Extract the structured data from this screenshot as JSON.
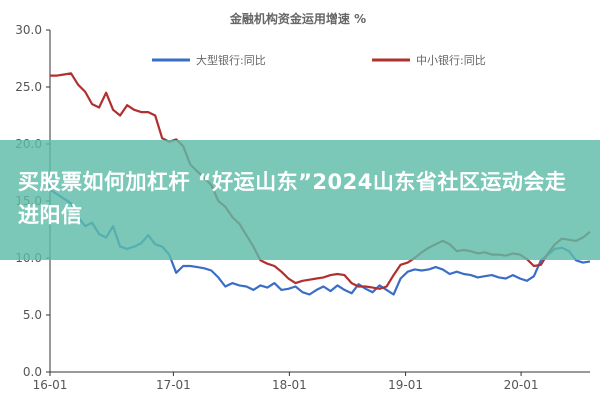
{
  "chart_data": {
    "type": "line",
    "title": "金融机构资金运用增速 %",
    "x_tick_labels": [
      "16-01",
      "17-01",
      "18-01",
      "19-01",
      "20-01"
    ],
    "y_tick_labels": [
      "0.0",
      "5.0",
      "10.0",
      "15.0",
      "20.0",
      "25.0",
      "30.0"
    ],
    "ylim": [
      0,
      30
    ],
    "grid": false,
    "legend_position": "top",
    "series": [
      {
        "name": "大型银行:同比",
        "color": "#3a6ec6",
        "values": [
          16.0,
          15.6,
          15.2,
          14.8,
          13.6,
          12.8,
          13.1,
          12.1,
          11.8,
          12.8,
          11.0,
          10.8,
          11.0,
          11.3,
          12.0,
          11.2,
          11.0,
          10.3,
          8.7,
          9.3,
          9.3,
          9.2,
          9.1,
          8.9,
          8.3,
          7.5,
          7.8,
          7.6,
          7.5,
          7.2,
          7.6,
          7.4,
          7.8,
          7.2,
          7.3,
          7.5,
          7.0,
          6.8,
          7.2,
          7.5,
          7.1,
          7.6,
          7.2,
          6.9,
          7.7,
          7.3,
          7.0,
          7.6,
          7.2,
          6.8,
          8.2,
          8.8,
          9.0,
          8.9,
          9.0,
          9.2,
          9.0,
          8.6,
          8.8,
          8.6,
          8.5,
          8.3,
          8.4,
          8.5,
          8.3,
          8.2,
          8.5,
          8.2,
          8.0,
          8.4,
          9.8,
          10.3,
          10.8,
          10.9,
          10.6,
          9.8,
          9.6,
          9.7
        ]
      },
      {
        "name": "中小银行:同比",
        "color": "#b03030",
        "values": [
          26.0,
          26.0,
          26.1,
          26.2,
          25.2,
          24.6,
          23.5,
          23.2,
          24.5,
          23.0,
          22.5,
          23.4,
          23.0,
          22.8,
          22.8,
          22.5,
          20.5,
          20.2,
          20.4,
          19.8,
          18.2,
          17.6,
          17.0,
          16.4,
          15.0,
          14.5,
          13.6,
          13.0,
          12.0,
          11.0,
          9.8,
          9.5,
          9.3,
          8.8,
          8.2,
          7.8,
          8.0,
          8.1,
          8.2,
          8.3,
          8.5,
          8.6,
          8.5,
          7.8,
          7.5,
          7.5,
          7.4,
          7.3,
          7.5,
          8.5,
          9.4,
          9.6,
          10.0,
          10.5,
          10.9,
          11.2,
          11.5,
          11.2,
          10.6,
          10.7,
          10.6,
          10.4,
          10.5,
          10.3,
          10.3,
          10.2,
          10.4,
          10.3,
          9.9,
          9.3,
          9.4,
          10.4,
          11.2,
          11.7,
          11.6,
          11.5,
          11.8,
          12.3
        ]
      }
    ]
  },
  "overlay": {
    "text": "买股票如何加杠杆 “好运山东”2024山东省社区运动会走进阳信"
  }
}
